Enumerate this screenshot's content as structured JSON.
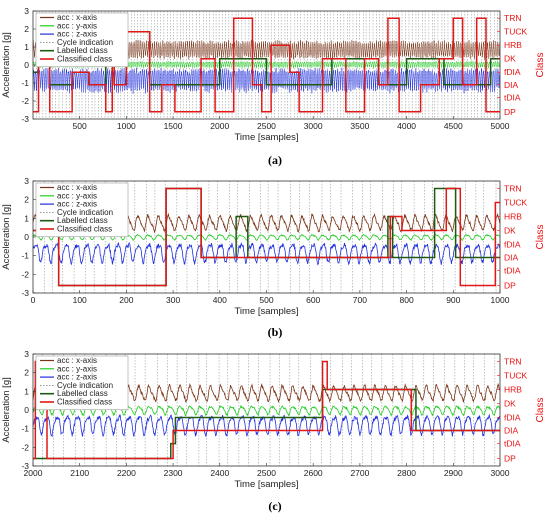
{
  "chart_data": [
    {
      "type": "line",
      "panel": "(a)",
      "xlabel": "Time [samples]",
      "ylabel": "Acceleration [g]",
      "right_label": "Class",
      "xlim": [
        1,
        5000
      ],
      "ylim": [
        -3,
        3
      ],
      "xticks": [
        500,
        1000,
        1500,
        2000,
        2500,
        3000,
        3500,
        4000,
        4500,
        5000
      ],
      "yticks": [
        -3,
        -2,
        -1,
        0,
        1,
        2,
        3
      ],
      "class_levels": [
        "DP",
        "tDIA",
        "DIA",
        "fDIA",
        "DK",
        "HRB",
        "TUCK",
        "TRN"
      ],
      "class_values": [
        -2.6,
        -1.8,
        -1.1,
        -0.4,
        0.35,
        1.1,
        1.85,
        2.6
      ],
      "legend": [
        "acc : x-axis",
        "acc : y-axis",
        "acc : z-axis",
        "Cycle indication",
        "Labelled class",
        "Classified class"
      ],
      "legend_placement": "top-left",
      "series": [
        {
          "name": "acc : x-axis",
          "color": "#7a3416",
          "baseline": 0.85,
          "amp": 0.4,
          "period": 22
        },
        {
          "name": "acc : y-axis",
          "color": "#22cc22",
          "baseline": 0.05,
          "amp": 0.15,
          "period": 22
        },
        {
          "name": "acc : z-axis",
          "color": "#1f2fe0",
          "baseline": -0.75,
          "amp": 0.55,
          "period": 22
        },
        {
          "name": "Labelled class",
          "color": "#1f5a12",
          "steps": [
            [
              1,
              -0.4
            ],
            [
              60,
              0.35
            ],
            [
              180,
              -1.1
            ],
            [
              420,
              -0.4
            ],
            [
              600,
              -1.1
            ],
            [
              780,
              0.35
            ],
            [
              850,
              2.6
            ],
            [
              870,
              -1.1
            ],
            [
              1000,
              1.85
            ],
            [
              1250,
              -1.1
            ],
            [
              2000,
              0.35
            ],
            [
              2500,
              -1.1
            ],
            [
              3200,
              0.35
            ],
            [
              3700,
              -1.1
            ],
            [
              4000,
              0.35
            ],
            [
              4400,
              -1.1
            ],
            [
              4900,
              0.35
            ],
            [
              5000,
              0.35
            ]
          ]
        },
        {
          "name": "Classified class",
          "color": "#e01818",
          "steps": [
            [
              1,
              -2.6
            ],
            [
              60,
              0.35
            ],
            [
              180,
              -2.6
            ],
            [
              420,
              -0.4
            ],
            [
              600,
              -1.1
            ],
            [
              780,
              -2.6
            ],
            [
              850,
              2.6
            ],
            [
              870,
              -1.1
            ],
            [
              1000,
              1.85
            ],
            [
              1250,
              -2.6
            ],
            [
              1380,
              -1.1
            ],
            [
              1520,
              -2.6
            ],
            [
              1800,
              0.35
            ],
            [
              1950,
              -2.6
            ],
            [
              2150,
              2.6
            ],
            [
              2350,
              -1.1
            ],
            [
              2450,
              -2.6
            ],
            [
              2550,
              1.1
            ],
            [
              2750,
              -0.4
            ],
            [
              2850,
              -2.6
            ],
            [
              3100,
              0.35
            ],
            [
              3350,
              -2.6
            ],
            [
              3550,
              0.35
            ],
            [
              3700,
              -1.1
            ],
            [
              3800,
              2.6
            ],
            [
              3920,
              -2.6
            ],
            [
              4150,
              -1.1
            ],
            [
              4350,
              0.35
            ],
            [
              4500,
              2.6
            ],
            [
              4600,
              -1.1
            ],
            [
              4750,
              2.6
            ],
            [
              4850,
              -2.6
            ],
            [
              5000,
              -2.6
            ]
          ]
        }
      ],
      "cycle_spacing": 35
    },
    {
      "type": "line",
      "panel": "(b)",
      "xlabel": "Time [samples]",
      "ylabel": "Acceleration [g]",
      "right_label": "Class",
      "xlim": [
        0,
        1000
      ],
      "ylim": [
        -3,
        3
      ],
      "xticks": [
        0,
        100,
        200,
        300,
        400,
        500,
        600,
        700,
        800,
        900,
        1000
      ],
      "yticks": [
        -3,
        -2,
        -1,
        0,
        1,
        2,
        3
      ],
      "class_levels": [
        "DP",
        "tDIA",
        "DIA",
        "fDIA",
        "DK",
        "HRB",
        "TUCK",
        "TRN"
      ],
      "class_values": [
        -2.6,
        -1.8,
        -1.1,
        -0.4,
        0.35,
        1.1,
        1.85,
        2.6
      ],
      "legend": [
        "acc : x-axis",
        "acc : y-axis",
        "acc : z-axis",
        "Cycle indication",
        "Labelled class",
        "Classified class"
      ],
      "legend_placement": "top-left",
      "series": [
        {
          "name": "acc : x-axis",
          "color": "#7a3416",
          "baseline": 0.75,
          "amp": 0.35,
          "period": 22
        },
        {
          "name": "acc : y-axis",
          "color": "#22cc22",
          "baseline": 0.0,
          "amp": 0.12,
          "period": 22
        },
        {
          "name": "acc : z-axis",
          "color": "#1f2fe0",
          "baseline": -0.8,
          "amp": 0.45,
          "period": 22
        },
        {
          "name": "Labelled class",
          "color": "#1f5a12",
          "steps": [
            [
              0,
              0.35
            ],
            [
              55,
              -2.6
            ],
            [
              285,
              2.6
            ],
            [
              360,
              -1.1
            ],
            [
              435,
              1.1
            ],
            [
              460,
              -1.1
            ],
            [
              760,
              1.1
            ],
            [
              770,
              -1.1
            ],
            [
              860,
              2.6
            ],
            [
              905,
              -1.1
            ],
            [
              1000,
              -1.1
            ]
          ]
        },
        {
          "name": "Classified class",
          "color": "#e01818",
          "steps": [
            [
              0,
              0.35
            ],
            [
              55,
              -2.6
            ],
            [
              285,
              2.6
            ],
            [
              360,
              -1.1
            ],
            [
              765,
              1.1
            ],
            [
              790,
              0.35
            ],
            [
              885,
              2.6
            ],
            [
              915,
              -2.6
            ],
            [
              990,
              1.85
            ],
            [
              1000,
              1.85
            ]
          ]
        }
      ],
      "cycle_spacing": 22
    },
    {
      "type": "line",
      "panel": "(c)",
      "xlabel": "Time [samples]",
      "ylabel": "Acceleration [g]",
      "right_label": "Class",
      "xlim": [
        2000,
        3000
      ],
      "ylim": [
        -3,
        3
      ],
      "xticks": [
        2000,
        2100,
        2200,
        2300,
        2400,
        2500,
        2600,
        2700,
        2800,
        2900,
        3000
      ],
      "yticks": [
        -3,
        -2,
        -1,
        0,
        1,
        2,
        3
      ],
      "class_levels": [
        "DP",
        "tDIA",
        "DIA",
        "fDIA",
        "DK",
        "HRB",
        "TUCK",
        "TRN"
      ],
      "class_values": [
        -2.6,
        -1.8,
        -1.1,
        -0.4,
        0.35,
        1.1,
        1.85,
        2.6
      ],
      "legend": [
        "acc : x-axis",
        "acc : y-axis",
        "acc : z-axis",
        "Cycle indication",
        "Labelled class",
        "Classified class"
      ],
      "legend_placement": "top-left",
      "series": [
        {
          "name": "acc : x-axis",
          "color": "#7a3416",
          "baseline": 0.9,
          "amp": 0.35,
          "period": 22
        },
        {
          "name": "acc : y-axis",
          "color": "#22cc22",
          "baseline": 0.0,
          "amp": 0.2,
          "period": 22
        },
        {
          "name": "acc : z-axis",
          "color": "#1f2fe0",
          "baseline": -0.75,
          "amp": 0.45,
          "period": 22
        },
        {
          "name": "Labelled class",
          "color": "#1f5a12",
          "steps": [
            [
              2000,
              -2.6
            ],
            [
              2295,
              -1.8
            ],
            [
              2305,
              -0.4
            ],
            [
              2620,
              1.1
            ],
            [
              2820,
              -1.1
            ],
            [
              3000,
              -1.1
            ]
          ]
        },
        {
          "name": "Classified class",
          "color": "#e01818",
          "steps": [
            [
              2000,
              -2.6
            ],
            [
              2005,
              2.6
            ],
            [
              2030,
              -2.6
            ],
            [
              2300,
              -1.1
            ],
            [
              2620,
              2.6
            ],
            [
              2630,
              1.1
            ],
            [
              2810,
              -1.1
            ],
            [
              3000,
              -1.1
            ]
          ]
        }
      ],
      "cycle_spacing": 22
    }
  ]
}
